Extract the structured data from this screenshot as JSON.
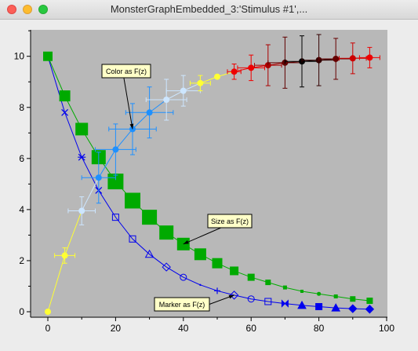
{
  "window": {
    "title": "MonsterGraphEmbedded_3:'Stimulus #1',...",
    "controls": [
      "close",
      "minimize",
      "zoom"
    ]
  },
  "colors": {
    "plot_background": "#b8b8b8",
    "yellow": "#ffff33",
    "light_blue": "#cde6ff",
    "sky_blue": "#1e90ff",
    "red": "#ee0000",
    "dark_red": "#600000",
    "green": "#00aa00",
    "blue": "#0000ee"
  },
  "chart_data": {
    "type": "line",
    "title": "",
    "xlabel": "",
    "ylabel": "",
    "xlim": [
      0,
      100
    ],
    "ylim": [
      0,
      11
    ],
    "xticks": [
      0,
      20,
      40,
      60,
      80,
      100
    ],
    "yticks": [
      0,
      2,
      4,
      6,
      8,
      10
    ],
    "grid": false,
    "series": [
      {
        "style": "color as F(z), error bars",
        "x": [
          0,
          5,
          10,
          15,
          20,
          25,
          30,
          35,
          40,
          45,
          50,
          55,
          60,
          65,
          70,
          75,
          80,
          85,
          90,
          95
        ],
        "y": [
          0.0,
          2.2,
          3.95,
          5.25,
          6.35,
          7.15,
          7.8,
          8.3,
          8.65,
          8.95,
          9.2,
          9.4,
          9.55,
          9.65,
          9.75,
          9.8,
          9.85,
          9.9,
          9.92,
          9.95
        ],
        "xerr": [
          0,
          3,
          4,
          5,
          6,
          7,
          7,
          6,
          5,
          3,
          0,
          2,
          4,
          4,
          5,
          5,
          5,
          5,
          4,
          3
        ],
        "yerr": [
          0,
          0.3,
          0.55,
          1.0,
          1.0,
          1.0,
          1.0,
          0.8,
          0.6,
          0.3,
          0,
          0.3,
          0.5,
          0.8,
          1.0,
          1.0,
          1.0,
          0.8,
          0.6,
          0.4
        ]
      },
      {
        "style": "size as F(z)",
        "x": [
          0,
          5,
          10,
          15,
          20,
          25,
          30,
          35,
          40,
          45,
          50,
          55,
          60,
          65,
          70,
          75,
          80,
          85,
          90,
          95
        ],
        "y": [
          10.0,
          8.45,
          7.15,
          6.05,
          5.1,
          4.35,
          3.7,
          3.1,
          2.65,
          2.25,
          1.9,
          1.6,
          1.35,
          1.15,
          0.95,
          0.8,
          0.7,
          0.6,
          0.5,
          0.43
        ]
      },
      {
        "style": "marker as F(z)",
        "x": [
          0,
          5,
          10,
          15,
          20,
          25,
          30,
          35,
          40,
          45,
          50,
          55,
          60,
          65,
          70,
          75,
          80,
          85,
          90,
          95
        ],
        "y": [
          10.0,
          7.8,
          6.05,
          4.75,
          3.7,
          2.85,
          2.25,
          1.75,
          1.35,
          1.05,
          0.82,
          0.65,
          0.5,
          0.4,
          0.32,
          0.25,
          0.2,
          0.15,
          0.12,
          0.1
        ]
      }
    ],
    "annotations": [
      {
        "text": "Color as F(z)",
        "target_x": 25,
        "target_y": 7.15
      },
      {
        "text": "Size as F(z)",
        "target_x": 40,
        "target_y": 2.65
      },
      {
        "text": "Marker as F(z)",
        "target_x": 55,
        "target_y": 0.65
      }
    ]
  }
}
